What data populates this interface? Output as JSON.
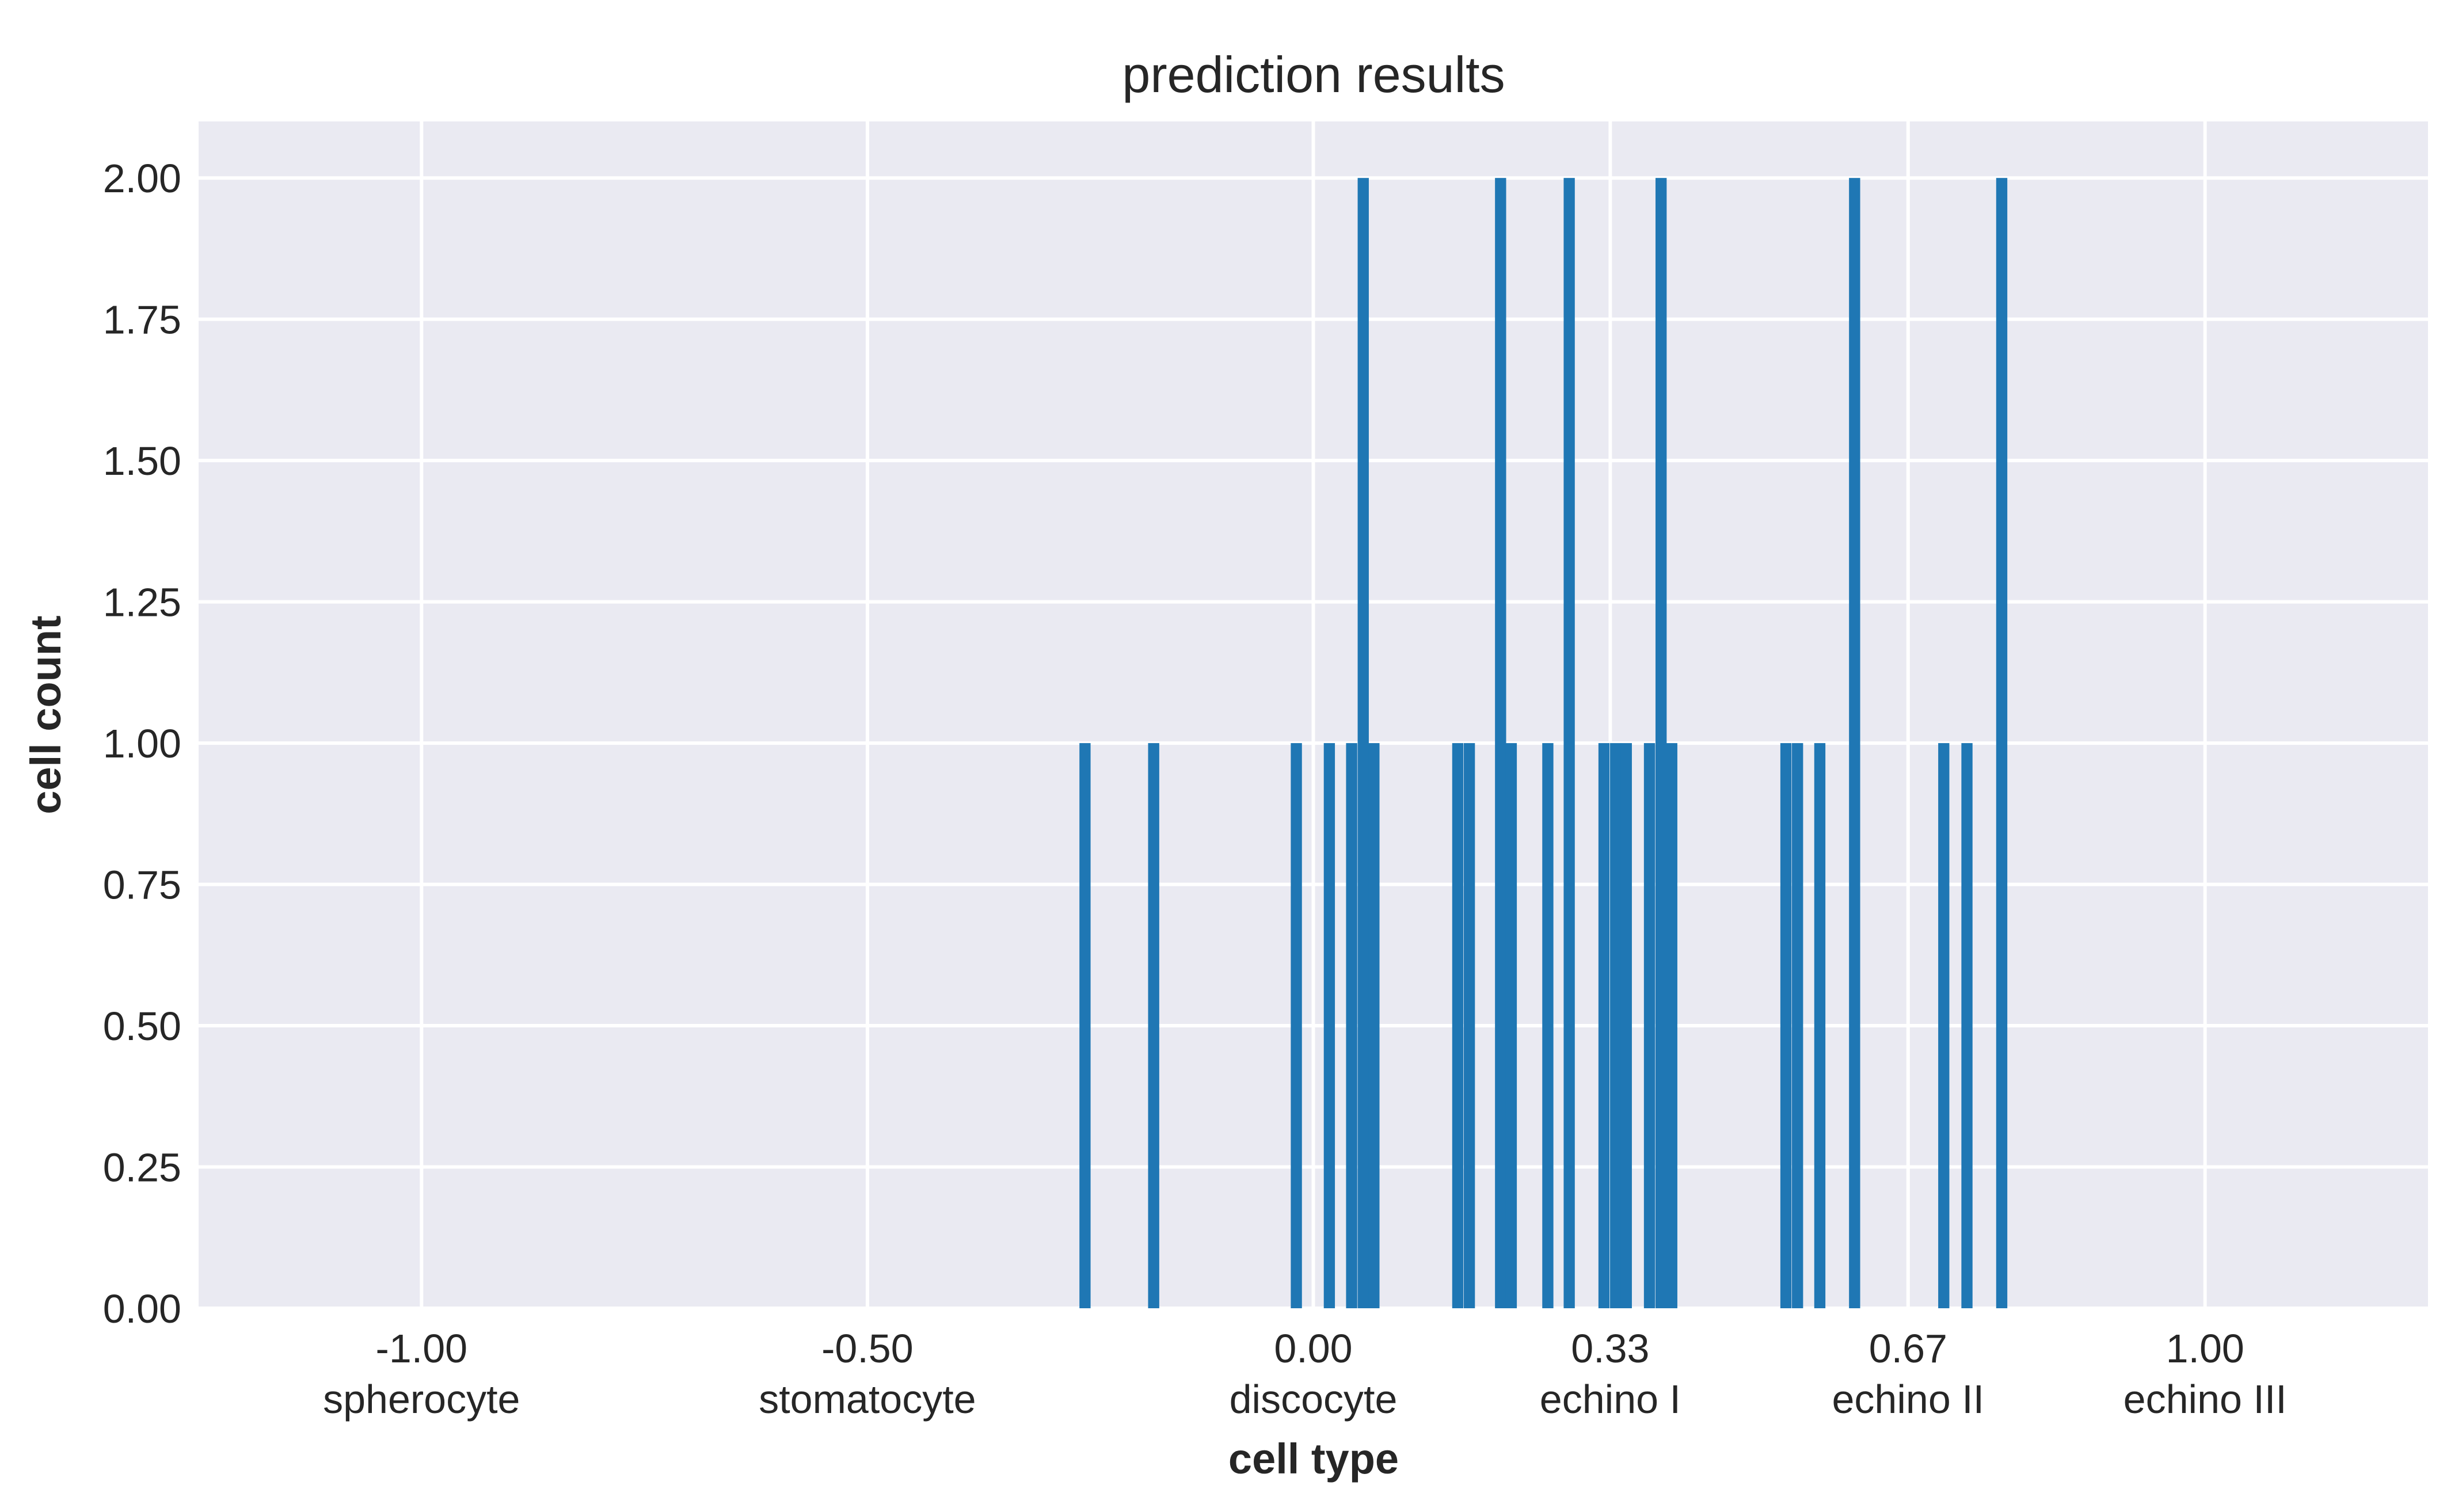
{
  "chart_data": {
    "type": "bar",
    "title": "prediction results",
    "xlabel": "cell type",
    "ylabel": "cell count",
    "xlim": [
      -1.25,
      1.25
    ],
    "ylim": [
      0,
      2.1
    ],
    "grid": true,
    "bar_width": 0.0125,
    "bar_color": "#1f77b4",
    "plot_background": "#eaeaf2",
    "grid_color": "#ffffff",
    "x_ticks": [
      {
        "value": -1.0,
        "label": "-1.00",
        "category": "spherocyte"
      },
      {
        "value": -0.5,
        "label": "-0.50",
        "category": "stomatocyte"
      },
      {
        "value": 0.0,
        "label": "0.00",
        "category": "discocyte"
      },
      {
        "value": 0.333,
        "label": "0.33",
        "category": "echino I"
      },
      {
        "value": 0.667,
        "label": "0.67",
        "category": "echino II"
      },
      {
        "value": 1.0,
        "label": "1.00",
        "category": "echino III"
      }
    ],
    "y_ticks": [
      {
        "value": 0.0,
        "label": "0.00"
      },
      {
        "value": 0.25,
        "label": "0.25"
      },
      {
        "value": 0.5,
        "label": "0.50"
      },
      {
        "value": 0.75,
        "label": "0.75"
      },
      {
        "value": 1.0,
        "label": "1.00"
      },
      {
        "value": 1.25,
        "label": "1.25"
      },
      {
        "value": 1.5,
        "label": "1.50"
      },
      {
        "value": 1.75,
        "label": "1.75"
      },
      {
        "value": 2.0,
        "label": "2.00"
      }
    ],
    "bars": [
      {
        "x": -0.256,
        "count": 1
      },
      {
        "x": -0.179,
        "count": 1
      },
      {
        "x": -0.019,
        "count": 1
      },
      {
        "x": 0.018,
        "count": 1
      },
      {
        "x": 0.043,
        "count": 1
      },
      {
        "x": 0.056,
        "count": 2
      },
      {
        "x": 0.068,
        "count": 1
      },
      {
        "x": 0.162,
        "count": 1
      },
      {
        "x": 0.175,
        "count": 1
      },
      {
        "x": 0.21,
        "count": 2
      },
      {
        "x": 0.222,
        "count": 1
      },
      {
        "x": 0.263,
        "count": 1
      },
      {
        "x": 0.287,
        "count": 2
      },
      {
        "x": 0.326,
        "count": 1
      },
      {
        "x": 0.339,
        "count": 1
      },
      {
        "x": 0.351,
        "count": 1
      },
      {
        "x": 0.377,
        "count": 1
      },
      {
        "x": 0.39,
        "count": 2
      },
      {
        "x": 0.402,
        "count": 1
      },
      {
        "x": 0.53,
        "count": 1
      },
      {
        "x": 0.543,
        "count": 1
      },
      {
        "x": 0.568,
        "count": 1
      },
      {
        "x": 0.607,
        "count": 2
      },
      {
        "x": 0.707,
        "count": 1
      },
      {
        "x": 0.733,
        "count": 1
      },
      {
        "x": 0.772,
        "count": 2
      }
    ]
  }
}
